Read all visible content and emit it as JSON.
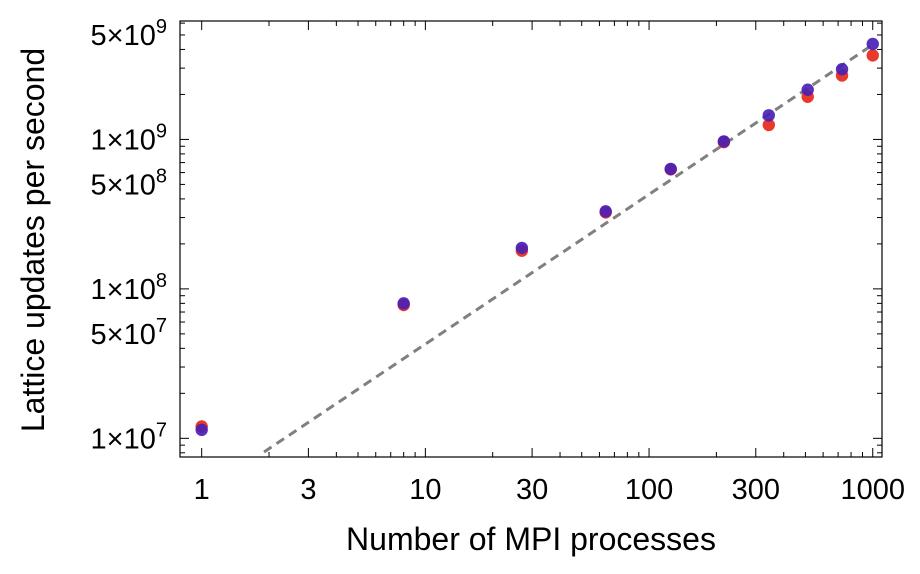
{
  "chart_data": {
    "type": "scatter",
    "title": "",
    "xlabel": "Number of MPI processes",
    "ylabel": "Lattice updates per second",
    "xscale": "log",
    "yscale": "log",
    "xlim": [
      0.8,
      1100
    ],
    "ylim": [
      7500000.0,
      6200000000.0
    ],
    "grid": false,
    "x_ticks": [
      {
        "value": 1,
        "label": "1"
      },
      {
        "value": 3,
        "label": "3"
      },
      {
        "value": 10,
        "label": "10"
      },
      {
        "value": 30,
        "label": "30"
      },
      {
        "value": 100,
        "label": "100"
      },
      {
        "value": 300,
        "label": "300"
      },
      {
        "value": 1000,
        "label": "1000"
      }
    ],
    "y_ticks": [
      {
        "value": 10000000.0,
        "mant": "1",
        "exp": "7"
      },
      {
        "value": 50000000.0,
        "mant": "5",
        "exp": "7"
      },
      {
        "value": 100000000.0,
        "mant": "1",
        "exp": "8"
      },
      {
        "value": 500000000.0,
        "mant": "5",
        "exp": "8"
      },
      {
        "value": 1000000000.0,
        "mant": "1",
        "exp": "9"
      },
      {
        "value": 5000000000.0,
        "mant": "5",
        "exp": "9"
      }
    ],
    "series": [
      {
        "color": "#e8392a",
        "x": [
          1,
          8,
          27,
          64,
          125,
          216,
          343,
          512,
          729,
          1000
        ],
        "y": [
          12000000.0,
          78000000.0,
          180000000.0,
          325000000.0,
          630000000.0,
          960000000.0,
          1250000000.0,
          1930000000.0,
          2680000000.0,
          3650000000.0
        ]
      },
      {
        "color": "#4b1fb5",
        "x": [
          1,
          8,
          27,
          64,
          125,
          216,
          343,
          512,
          729,
          1000
        ],
        "y": [
          11400000.0,
          80000000.0,
          188000000.0,
          330000000.0,
          635000000.0,
          970000000.0,
          1450000000.0,
          2150000000.0,
          2950000000.0,
          4350000000.0
        ]
      }
    ],
    "reference_line": {
      "style": "dashed",
      "color": "#808080",
      "x": [
        1.9,
        1000
      ],
      "y": [
        8100000.0,
        4300000000.0
      ]
    }
  }
}
